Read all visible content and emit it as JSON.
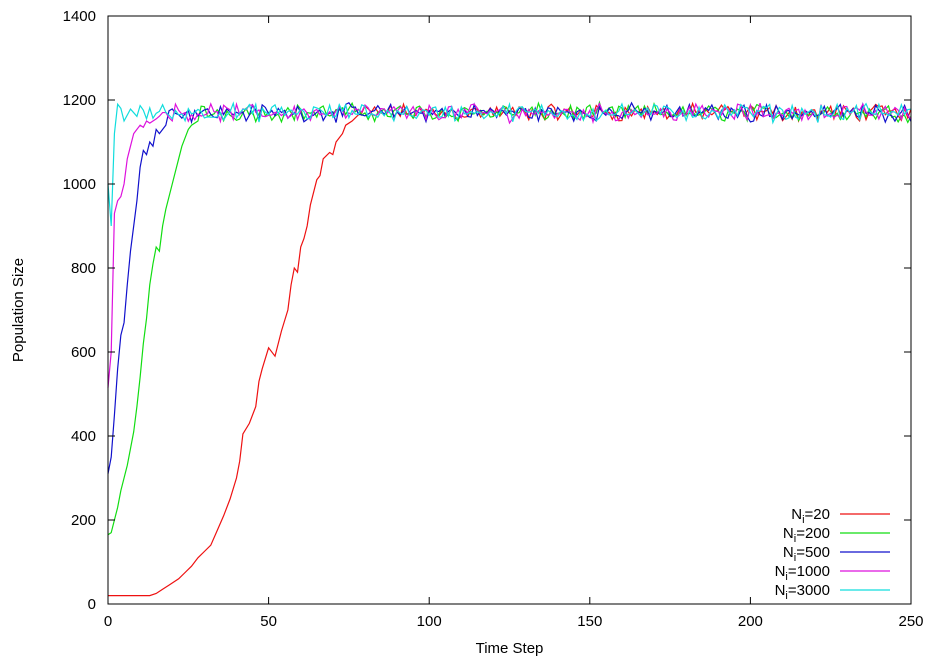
{
  "chart_data": {
    "type": "line",
    "title": "",
    "xlabel": "Time Step",
    "ylabel": "Population Size",
    "xlim": [
      0,
      250
    ],
    "ylim": [
      0,
      1400
    ],
    "xticks": [
      0,
      50,
      100,
      150,
      200,
      250
    ],
    "yticks": [
      0,
      200,
      400,
      600,
      800,
      1000,
      1200,
      1400
    ],
    "grid": false,
    "legend_position": "bottom-right",
    "series": [
      {
        "name": "N_i=20",
        "label_base": "N",
        "label_sub": "i",
        "label_rest": "=20",
        "color": "#ee1111",
        "start": 20,
        "takeoff_end": 78,
        "key_points": [
          [
            0,
            20
          ],
          [
            13,
            20
          ],
          [
            15,
            25
          ],
          [
            17,
            35
          ],
          [
            19,
            45
          ],
          [
            20,
            50
          ],
          [
            22,
            60
          ],
          [
            24,
            75
          ],
          [
            26,
            90
          ],
          [
            28,
            110
          ],
          [
            30,
            125
          ],
          [
            32,
            140
          ],
          [
            34,
            175
          ],
          [
            36,
            210
          ],
          [
            38,
            250
          ],
          [
            40,
            300
          ],
          [
            41,
            340
          ],
          [
            42,
            405
          ],
          [
            44,
            430
          ],
          [
            46,
            470
          ],
          [
            47,
            530
          ],
          [
            48,
            560
          ],
          [
            50,
            610
          ],
          [
            52,
            590
          ],
          [
            54,
            650
          ],
          [
            56,
            700
          ],
          [
            57,
            760
          ],
          [
            58,
            800
          ],
          [
            59,
            790
          ],
          [
            60,
            850
          ],
          [
            61,
            870
          ],
          [
            62,
            900
          ],
          [
            63,
            950
          ],
          [
            65,
            1010
          ],
          [
            66,
            1020
          ],
          [
            67,
            1060
          ],
          [
            69,
            1075
          ],
          [
            70,
            1070
          ],
          [
            71,
            1100
          ],
          [
            73,
            1120
          ],
          [
            74,
            1140
          ],
          [
            76,
            1150
          ],
          [
            78,
            1165
          ]
        ]
      },
      {
        "name": "N_i=200",
        "label_base": "N",
        "label_sub": "i",
        "label_rest": "=200",
        "color": "#11dd11",
        "start": 165,
        "takeoff_end": 28,
        "key_points": [
          [
            0,
            165
          ],
          [
            1,
            170
          ],
          [
            2,
            200
          ],
          [
            3,
            230
          ],
          [
            4,
            270
          ],
          [
            5,
            300
          ],
          [
            6,
            330
          ],
          [
            7,
            370
          ],
          [
            8,
            410
          ],
          [
            9,
            470
          ],
          [
            10,
            540
          ],
          [
            11,
            620
          ],
          [
            12,
            680
          ],
          [
            13,
            760
          ],
          [
            14,
            810
          ],
          [
            15,
            850
          ],
          [
            16,
            840
          ],
          [
            17,
            900
          ],
          [
            18,
            940
          ],
          [
            19,
            970
          ],
          [
            20,
            1000
          ],
          [
            21,
            1030
          ],
          [
            22,
            1060
          ],
          [
            23,
            1090
          ],
          [
            24,
            1110
          ],
          [
            25,
            1130
          ],
          [
            26,
            1140
          ],
          [
            28,
            1150
          ]
        ]
      },
      {
        "name": "N_i=500",
        "label_base": "N",
        "label_sub": "i",
        "label_rest": "=500",
        "color": "#1111cc",
        "start": 310,
        "takeoff_end": 18,
        "key_points": [
          [
            0,
            310
          ],
          [
            1,
            350
          ],
          [
            2,
            450
          ],
          [
            3,
            560
          ],
          [
            4,
            640
          ],
          [
            5,
            670
          ],
          [
            6,
            760
          ],
          [
            7,
            840
          ],
          [
            8,
            900
          ],
          [
            9,
            960
          ],
          [
            10,
            1040
          ],
          [
            11,
            1080
          ],
          [
            12,
            1070
          ],
          [
            13,
            1100
          ],
          [
            14,
            1090
          ],
          [
            15,
            1130
          ],
          [
            16,
            1120
          ],
          [
            18,
            1140
          ]
        ]
      },
      {
        "name": "N_i=1000",
        "label_base": "N",
        "label_sub": "i",
        "label_rest": "=1000",
        "color": "#dd11dd",
        "start": 515,
        "takeoff_end": 15,
        "key_points": [
          [
            0,
            515
          ],
          [
            1,
            600
          ],
          [
            2,
            930
          ],
          [
            3,
            960
          ],
          [
            4,
            970
          ],
          [
            5,
            1000
          ],
          [
            6,
            1060
          ],
          [
            7,
            1090
          ],
          [
            8,
            1120
          ],
          [
            9,
            1130
          ],
          [
            10,
            1140
          ],
          [
            11,
            1135
          ],
          [
            12,
            1150
          ],
          [
            13,
            1145
          ],
          [
            15,
            1155
          ]
        ]
      },
      {
        "name": "N_i=3000",
        "label_base": "N",
        "label_sub": "i",
        "label_rest": "=3000",
        "color": "#11dddd",
        "start": 1000,
        "takeoff_end": 5,
        "key_points": [
          [
            0,
            1000
          ],
          [
            1,
            900
          ],
          [
            2,
            1120
          ],
          [
            3,
            1190
          ],
          [
            4,
            1180
          ],
          [
            5,
            1150
          ]
        ]
      }
    ],
    "steady_state": {
      "mean": 1170,
      "amplitude": 18
    }
  }
}
